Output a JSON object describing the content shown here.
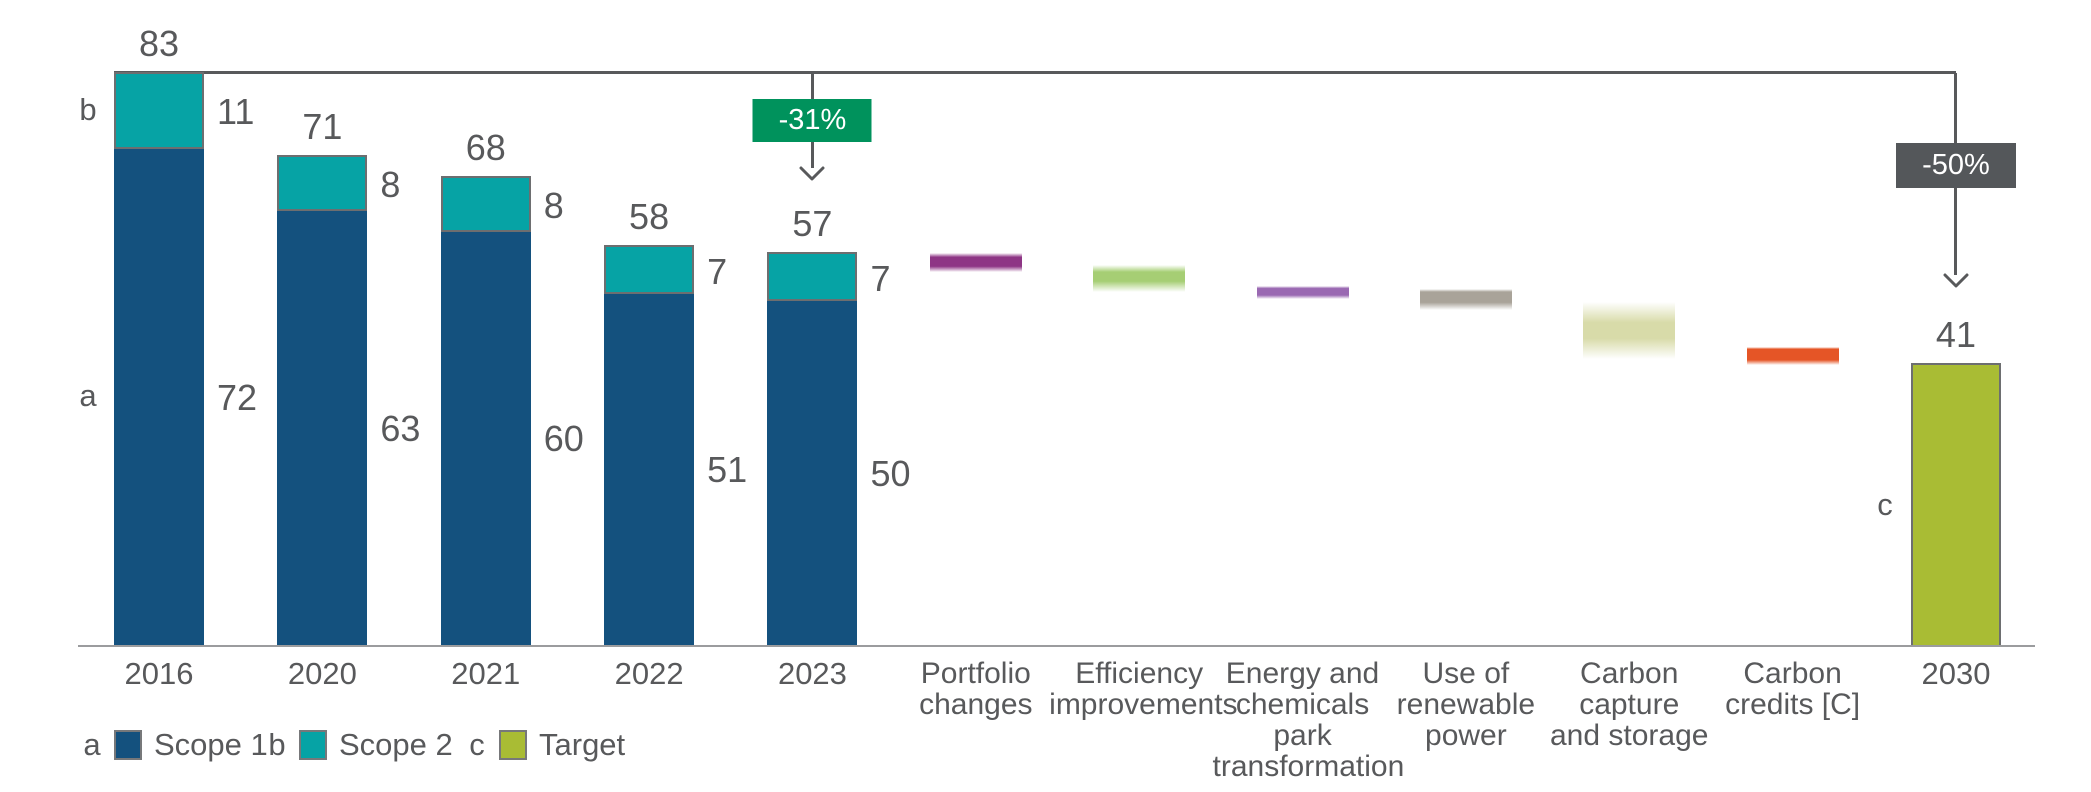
{
  "chart_data": {
    "type": "bar",
    "subtype": "stacked emissions bars with waterfall reduction levers",
    "title": "",
    "ylim": [
      0,
      86
    ],
    "grid": false,
    "stacked_bars": [
      {
        "category": "2016",
        "total": 83,
        "scope2": 11,
        "scope1": 72
      },
      {
        "category": "2020",
        "total": 71,
        "scope2": 8,
        "scope1": 63
      },
      {
        "category": "2021",
        "total": 68,
        "scope2": 8,
        "scope1": 60
      },
      {
        "category": "2022",
        "total": 58,
        "scope2": 7,
        "scope1": 51
      },
      {
        "category": "2023",
        "total": 57,
        "scope2": 7,
        "scope1": 50
      }
    ],
    "levers": [
      {
        "label_lines": [
          "Portfolio",
          "changes"
        ],
        "from": 56.9,
        "to": 54.2,
        "color": "#8e3585",
        "fade_top": 0.22,
        "fade_bottom": 0.3
      },
      {
        "label_lines": [
          "Efficiency",
          "improvements"
        ],
        "from": 55.2,
        "to": 51.3,
        "color": "#a6ce74",
        "fade_top": 0.26,
        "fade_bottom": 0.4
      },
      {
        "label_lines": [
          "Energy and",
          "chemicals",
          "park",
          "transformation"
        ],
        "from": 52.2,
        "to": 50.3,
        "color": "#9a69b2",
        "fade_top": 0.18,
        "fade_bottom": 0.3
      },
      {
        "label_lines": [
          "Use of",
          "renewable",
          "power"
        ],
        "from": 51.7,
        "to": 48.7,
        "color": "#a9a399",
        "fade_top": 0.14,
        "fade_bottom": 0.36
      },
      {
        "label_lines": [
          "Carbon",
          "capture",
          "and storage"
        ],
        "from": 49.9,
        "to": 41.6,
        "color": "#d8dba9",
        "fade_top": 0.36,
        "fade_bottom": 0.36
      },
      {
        "label_lines": [
          "Carbon",
          "credits [C]"
        ],
        "from": 43.4,
        "to": 40.8,
        "color": "#e55526",
        "fade_top": 0.12,
        "fade_bottom": 0.28
      }
    ],
    "target_bar": {
      "category": "2030",
      "value": 41
    },
    "side_labels": {
      "scope2": "b",
      "scope1": "a",
      "target": "c"
    },
    "annotations": [
      {
        "label": "-31%",
        "at_category": "2023",
        "bg": "#00925c"
      },
      {
        "label": "-50%",
        "at_category": "2030",
        "bg": "#54575a"
      }
    ],
    "legend": [
      {
        "key": "a",
        "label": "Scope 1",
        "color": "#14517e"
      },
      {
        "key": "b",
        "label": "Scope 2",
        "color": "#06a3a5"
      },
      {
        "key": "c",
        "label": "Target",
        "color": "#a9bc34"
      }
    ],
    "colors": {
      "scope1": "#14517e",
      "scope2": "#06a3a5",
      "target": "#a9bc34",
      "text": "#58595b",
      "axis_line": "#9b9c9e",
      "reference_line": "#58595b",
      "bar_border": "#6d6e70"
    }
  }
}
